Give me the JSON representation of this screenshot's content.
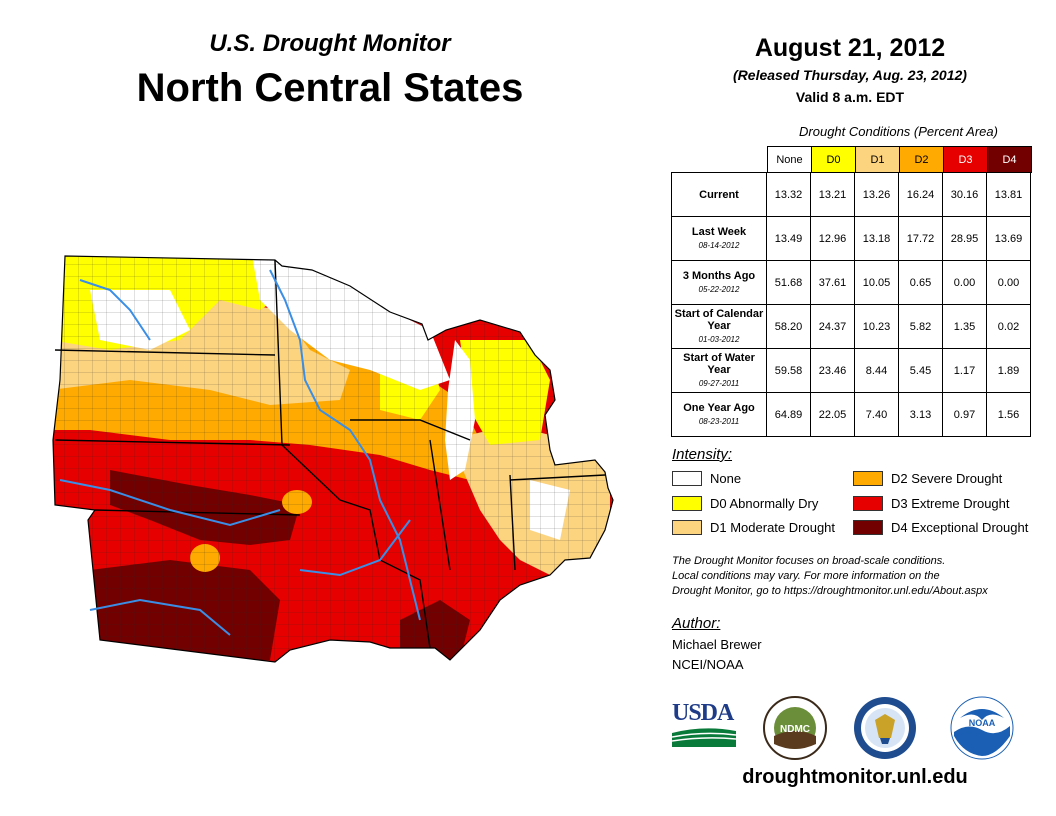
{
  "header": {
    "subtitle": "U.S. Drought Monitor",
    "title": "North Central States",
    "date": "August 21, 2012",
    "released": "(Released Thursday, Aug. 23, 2012)",
    "valid": "Valid 8 a.m. EDT"
  },
  "table": {
    "caption": "Drought Conditions (Percent Area)",
    "columns": [
      "None",
      "D0",
      "D1",
      "D2",
      "D3",
      "D4"
    ],
    "rows": [
      {
        "label": "Current",
        "date": "",
        "values": [
          "13.32",
          "13.21",
          "13.26",
          "16.24",
          "30.16",
          "13.81"
        ]
      },
      {
        "label": "Last Week",
        "date": "08-14-2012",
        "values": [
          "13.49",
          "12.96",
          "13.18",
          "17.72",
          "28.95",
          "13.69"
        ]
      },
      {
        "label": "3 Months Ago",
        "date": "05-22-2012",
        "values": [
          "51.68",
          "37.61",
          "10.05",
          "0.65",
          "0.00",
          "0.00"
        ]
      },
      {
        "label": "Start of Calendar Year",
        "date": "01-03-2012",
        "values": [
          "58.20",
          "24.37",
          "10.23",
          "5.82",
          "1.35",
          "0.02"
        ]
      },
      {
        "label": "Start of Water Year",
        "date": "09-27-2011",
        "values": [
          "59.58",
          "23.46",
          "8.44",
          "5.45",
          "1.17",
          "1.89"
        ]
      },
      {
        "label": "One Year Ago",
        "date": "08-23-2011",
        "values": [
          "64.89",
          "22.05",
          "7.40",
          "3.13",
          "0.97",
          "1.56"
        ]
      }
    ]
  },
  "legend": {
    "title": "Intensity:",
    "items": [
      {
        "label": "None",
        "color": "#ffffff"
      },
      {
        "label": "D0 Abnormally Dry",
        "color": "#ffff00"
      },
      {
        "label": "D1 Moderate Drought",
        "color": "#fcd37f"
      },
      {
        "label": "D2 Severe Drought",
        "color": "#ffaa00"
      },
      {
        "label": "D3 Extreme Drought",
        "color": "#e60000"
      },
      {
        "label": "D4 Exceptional Drought",
        "color": "#730000"
      }
    ]
  },
  "note": {
    "line1": "The Drought Monitor focuses on broad-scale conditions.",
    "line2": "Local conditions may vary. For more information on the",
    "line3": "Drought Monitor, go to https://droughtmonitor.unl.edu/About.aspx"
  },
  "author": {
    "title": "Author:",
    "name": "Michael Brewer",
    "org": "NCEI/NOAA"
  },
  "logos": {
    "usda": "USDA",
    "ndmc": "NDMC",
    "noaa": "NOAA"
  },
  "website": "droughtmonitor.unl.edu",
  "colors": {
    "none": "#ffffff",
    "d0": "#ffff00",
    "d1": "#fcd37f",
    "d2": "#ffaa00",
    "d3": "#e60000",
    "d4": "#730000",
    "river": "#3a8ee6"
  }
}
